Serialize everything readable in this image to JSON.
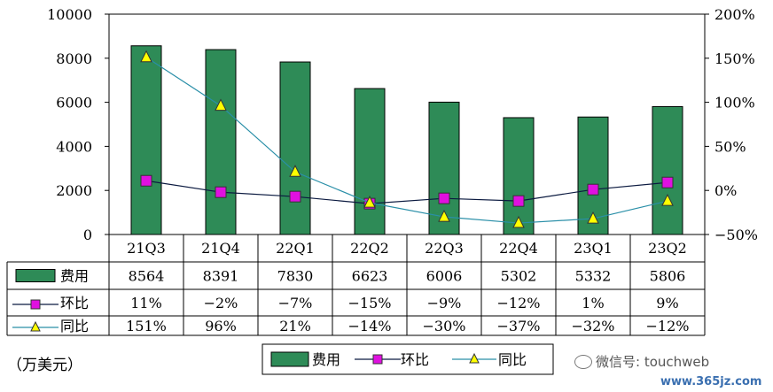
{
  "chart_data": {
    "type": "bar",
    "categories": [
      "21Q3",
      "21Q4",
      "22Q1",
      "22Q2",
      "22Q3",
      "22Q4",
      "23Q1",
      "23Q2"
    ],
    "series": [
      {
        "name": "费用",
        "type": "bar",
        "axis": "left",
        "color": "#2e8b57",
        "values": [
          8564,
          8391,
          7830,
          6623,
          6006,
          5302,
          5332,
          5806
        ],
        "labels": [
          "8564",
          "8391",
          "7830",
          "6623",
          "6006",
          "5302",
          "5332",
          "5806"
        ]
      },
      {
        "name": "环比",
        "type": "line",
        "axis": "right",
        "color": "#0b1a40",
        "marker": "square-magenta",
        "values": [
          11,
          -2,
          -7,
          -15,
          -9,
          -12,
          1,
          9
        ],
        "labels": [
          "11%",
          "−2%",
          "−7%",
          "−15%",
          "−9%",
          "−12%",
          "1%",
          "9%"
        ]
      },
      {
        "name": "同比",
        "type": "line",
        "axis": "right",
        "color": "#2a8fa8",
        "marker": "triangle-yellow",
        "values": [
          151,
          96,
          21,
          -14,
          -30,
          -37,
          -32,
          -12
        ],
        "labels": [
          "151%",
          "96%",
          "21%",
          "−14%",
          "−30%",
          "−37%",
          "−32%",
          "−12%"
        ]
      }
    ],
    "y_left": {
      "ylim": [
        0,
        10000
      ],
      "ticks": [
        "0",
        "2000",
        "4000",
        "6000",
        "8000",
        "10000"
      ]
    },
    "y_right": {
      "ylim": [
        -50,
        200
      ],
      "ticks": [
        "−50%",
        "0%",
        "50%",
        "100%",
        "150%",
        "200%"
      ]
    },
    "legend": {
      "placement": "bottom-center",
      "items": [
        "费用",
        "环比",
        "同比"
      ]
    },
    "table": true,
    "grid": false
  },
  "unit_label": "（万美元）",
  "watermark": "微信号: touchweb",
  "site": "www.365jz.com"
}
